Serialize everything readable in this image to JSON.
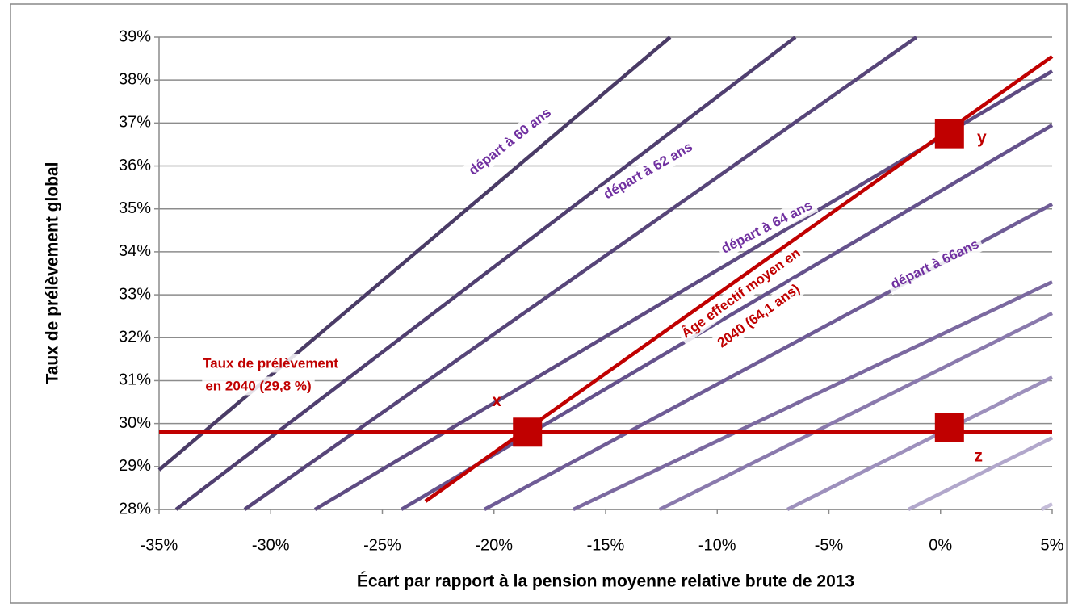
{
  "chart_data": {
    "type": "line",
    "xlabel": "Écart par rapport à la pension moyenne relative brute de 2013",
    "ylabel": "Taux de prélèvement global",
    "xlim": [
      -35,
      5
    ],
    "ylim": [
      28,
      39
    ],
    "xticks": [
      {
        "value": -35,
        "label": "-35%"
      },
      {
        "value": -30,
        "label": "-30%"
      },
      {
        "value": -25,
        "label": "-25%"
      },
      {
        "value": -20,
        "label": "-20%"
      },
      {
        "value": -15,
        "label": "-15%"
      },
      {
        "value": -10,
        "label": "-10%"
      },
      {
        "value": -5,
        "label": "-5%"
      },
      {
        "value": 0,
        "label": "0%"
      },
      {
        "value": 5,
        "label": "5%"
      }
    ],
    "yticks": [
      {
        "value": 28,
        "label": "28%"
      },
      {
        "value": 29,
        "label": "29%"
      },
      {
        "value": 30,
        "label": "30%"
      },
      {
        "value": 31,
        "label": "31%"
      },
      {
        "value": 32,
        "label": "32%"
      },
      {
        "value": 33,
        "label": "33%"
      },
      {
        "value": 34,
        "label": "34%"
      },
      {
        "value": 35,
        "label": "35%"
      },
      {
        "value": 36,
        "label": "36%"
      },
      {
        "value": 37,
        "label": "37%"
      },
      {
        "value": 38,
        "label": "38%"
      },
      {
        "value": 39,
        "label": "39%"
      }
    ],
    "grid": true,
    "series": [
      {
        "color": "#4a3b66",
        "x": [
          -35,
          -12.11
        ],
        "values": [
          28.92,
          39
        ]
      },
      {
        "color": "#503f70",
        "x": [
          -34.24,
          -6.5
        ],
        "values": [
          28,
          39
        ]
      },
      {
        "color": "#574579",
        "x": [
          -31.17,
          -1.08
        ],
        "values": [
          28,
          39
        ]
      },
      {
        "color": "#5e4b82",
        "x": [
          -28.02,
          5
        ],
        "values": [
          28,
          38.21
        ]
      },
      {
        "color": "#65528c",
        "x": [
          -24.15,
          5
        ],
        "values": [
          28,
          36.95
        ]
      },
      {
        "color": "#6f5c96",
        "x": [
          -20.43,
          5
        ],
        "values": [
          28,
          35.11
        ]
      },
      {
        "color": "#7b69a0",
        "x": [
          -16.45,
          5
        ],
        "values": [
          28,
          33.3
        ]
      },
      {
        "color": "#8a7aad",
        "x": [
          -12.58,
          5
        ],
        "values": [
          28,
          32.57
        ]
      },
      {
        "color": "#9d90bc",
        "x": [
          -6.86,
          5
        ],
        "values": [
          28,
          31.08
        ]
      },
      {
        "color": "#b1a7cb",
        "x": [
          -1.44,
          5
        ],
        "values": [
          28,
          29.67
        ]
      },
      {
        "color": "#c5bdd9",
        "x": [
          4.53,
          5
        ],
        "values": [
          28,
          28.13
        ]
      },
      {
        "color": "#c00000",
        "x": [
          -23.07,
          5
        ],
        "values": [
          28.19,
          38.55
        ]
      },
      {
        "color": "#c00000",
        "x": [
          -35,
          5
        ],
        "values": [
          29.8,
          29.8
        ]
      }
    ],
    "points": [
      {
        "label": "x",
        "x": -18.5,
        "y": 29.8
      },
      {
        "label": "y",
        "x": 0.4,
        "y": 36.75
      },
      {
        "label": "z",
        "x": 0.4,
        "y": 29.9
      }
    ],
    "point_color": "#c00000",
    "annotations": [
      {
        "text": "départ à 60 ans",
        "color": "#7030a0"
      },
      {
        "text": "départ à 62 ans",
        "color": "#7030a0"
      },
      {
        "text": "départ à 64 ans",
        "color": "#7030a0"
      },
      {
        "text": "départ à 66ans",
        "color": "#7030a0"
      },
      {
        "text": "Âge effectif moyen en",
        "color": "#c00000"
      },
      {
        "text": "2040  (64,1 ans)",
        "color": "#c00000"
      },
      {
        "text": "Taux de prélèvement",
        "color": "#c00000"
      },
      {
        "text": "en 2040 (29,8 %)",
        "color": "#c00000"
      }
    ]
  }
}
